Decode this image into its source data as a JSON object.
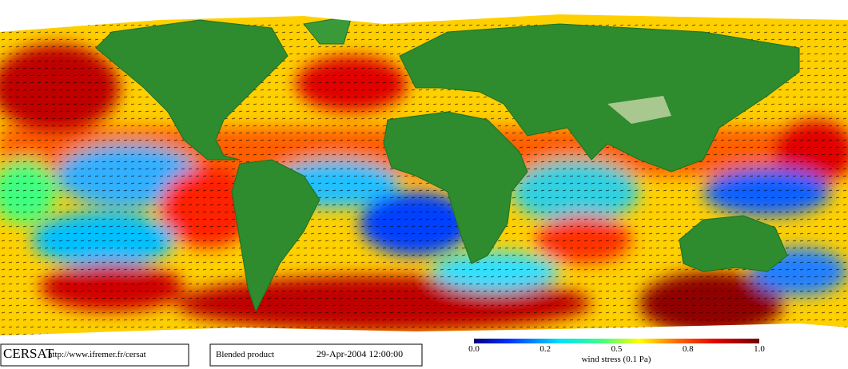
{
  "logo": {
    "name": "CERSAT",
    "url": "http://www.ifremer.fr/cersat"
  },
  "product": {
    "name": "Blended product",
    "date": "29-Apr-2004 12:00:00"
  },
  "colorbar": {
    "ticks": [
      "0.0",
      "0.2",
      "0.5",
      "0.8",
      "1.0"
    ],
    "label": "wind stress (0.1 Pa)"
  }
}
